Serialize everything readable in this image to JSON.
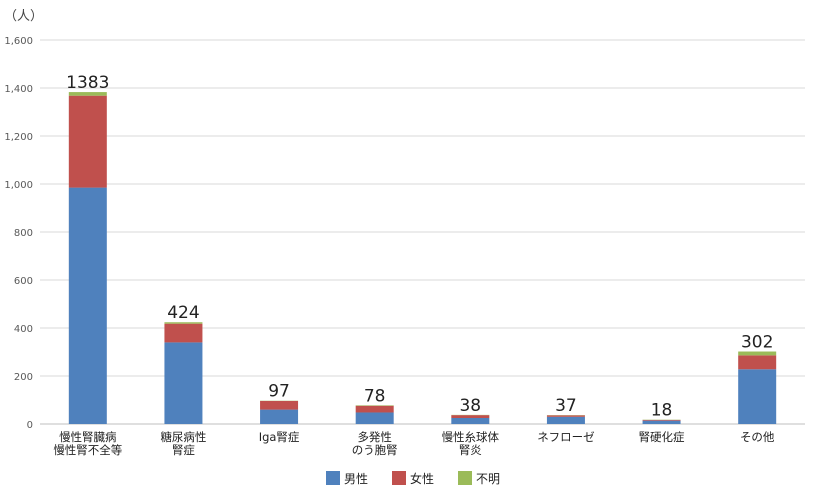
{
  "chart_data": {
    "type": "bar",
    "stacked": true,
    "unit_label": "（人）",
    "categories": [
      [
        "慢性腎臓病",
        "慢性腎不全等"
      ],
      [
        "糖尿病性",
        "腎症"
      ],
      [
        "Iga腎症"
      ],
      [
        "多発性",
        "のう胞腎"
      ],
      [
        "慢性糸球体",
        "腎炎"
      ],
      [
        "ネフローゼ"
      ],
      [
        "腎硬化症"
      ],
      [
        "その他"
      ]
    ],
    "series": [
      {
        "name": "男性",
        "color": "#4f81bd",
        "values": [
          985,
          340,
          60,
          48,
          25,
          30,
          14,
          228
        ]
      },
      {
        "name": "女性",
        "color": "#c0504d",
        "values": [
          383,
          78,
          36,
          28,
          12,
          6,
          3,
          58
        ]
      },
      {
        "name": "不明",
        "color": "#9bbb59",
        "values": [
          15,
          6,
          1,
          2,
          1,
          1,
          1,
          16
        ]
      }
    ],
    "totals": [
      "1383",
      "424",
      "97",
      "78",
      "38",
      "37",
      "18",
      "302"
    ],
    "ylim": [
      0,
      1600
    ],
    "yticks": [
      0,
      200,
      400,
      600,
      800,
      1000,
      1200,
      1400,
      1600
    ],
    "ytick_labels": [
      "0",
      "200",
      "400",
      "600",
      "800",
      "1,000",
      "1,200",
      "1,400",
      "1,600"
    ],
    "grid": true,
    "legend": "bottom"
  }
}
